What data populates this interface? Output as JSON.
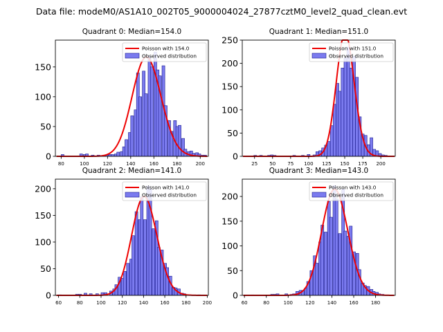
{
  "figure": {
    "suptitle": "Data file: modeM0/AS1A10_002T05_9000004024_27877cztM0_level2_quad_clean.evt"
  },
  "chart_data": [
    {
      "type": "histogram",
      "title": "Quadrant 0: Median=154.0",
      "median": 154.0,
      "xlim": [
        75,
        207
      ],
      "ylim": [
        0,
        195
      ],
      "xticks": [
        80,
        100,
        120,
        140,
        160,
        180,
        200
      ],
      "yticks": [
        0,
        50,
        100,
        150
      ],
      "bin_width": 2.45,
      "bins": [
        [
          80,
          3
        ],
        [
          96,
          4
        ],
        [
          99,
          3
        ],
        [
          101,
          4
        ],
        [
          106,
          2
        ],
        [
          111,
          2
        ],
        [
          116,
          2
        ],
        [
          119,
          2
        ],
        [
          121,
          3
        ],
        [
          123,
          3
        ],
        [
          126,
          4
        ],
        [
          128,
          7
        ],
        [
          131,
          8
        ],
        [
          133,
          16
        ],
        [
          135,
          28
        ],
        [
          138,
          40
        ],
        [
          140,
          68
        ],
        [
          143,
          78
        ],
        [
          145,
          140
        ],
        [
          147,
          100
        ],
        [
          150,
          143
        ],
        [
          152,
          105
        ],
        [
          155,
          168
        ],
        [
          157,
          150
        ],
        [
          160,
          175
        ],
        [
          162,
          145
        ],
        [
          164,
          135
        ],
        [
          167,
          152
        ],
        [
          169,
          85
        ],
        [
          172,
          60
        ],
        [
          174,
          42
        ],
        [
          177,
          60
        ],
        [
          179,
          50
        ],
        [
          181,
          52
        ],
        [
          184,
          30
        ],
        [
          186,
          12
        ],
        [
          189,
          8
        ],
        [
          191,
          9
        ],
        [
          193,
          5
        ],
        [
          196,
          6
        ],
        [
          198,
          4
        ],
        [
          201,
          2
        ],
        [
          203,
          2
        ]
      ],
      "poisson_mean": 154.0,
      "legend": [
        "Poisson with 154.0",
        "Observed distribution"
      ]
    },
    {
      "type": "histogram",
      "title": "Quadrant 1: Median=151.0",
      "median": 151.0,
      "xlim": [
        8,
        220
      ],
      "ylim": [
        0,
        250
      ],
      "xticks": [
        25,
        50,
        75,
        100,
        125,
        150,
        175,
        200
      ],
      "yticks": [
        0,
        50,
        100,
        150,
        200,
        250
      ],
      "bin_width": 3.9,
      "bins": [
        [
          16,
          1
        ],
        [
          20,
          1
        ],
        [
          24,
          2
        ],
        [
          28,
          1
        ],
        [
          32,
          2
        ],
        [
          39,
          1
        ],
        [
          43,
          2
        ],
        [
          47,
          3
        ],
        [
          51,
          2
        ],
        [
          55,
          1
        ],
        [
          59,
          1
        ],
        [
          67,
          1
        ],
        [
          71,
          1
        ],
        [
          78,
          2
        ],
        [
          82,
          1
        ],
        [
          90,
          2
        ],
        [
          98,
          4
        ],
        [
          106,
          3
        ],
        [
          110,
          10
        ],
        [
          114,
          12
        ],
        [
          118,
          18
        ],
        [
          122,
          24
        ],
        [
          126,
          32
        ],
        [
          130,
          66
        ],
        [
          134,
          112
        ],
        [
          138,
          157
        ],
        [
          141,
          140
        ],
        [
          145,
          190
        ],
        [
          149,
          212
        ],
        [
          153,
          235
        ],
        [
          157,
          190
        ],
        [
          161,
          215
        ],
        [
          165,
          170
        ],
        [
          169,
          85
        ],
        [
          173,
          48
        ],
        [
          177,
          45
        ],
        [
          181,
          25
        ],
        [
          185,
          40
        ],
        [
          189,
          15
        ],
        [
          193,
          12
        ],
        [
          197,
          6
        ],
        [
          201,
          3
        ],
        [
          205,
          2
        ],
        [
          209,
          1
        ]
      ],
      "poisson_mean": 151.0,
      "legend": [
        "Poisson with 151.0",
        "Observed distribution"
      ]
    },
    {
      "type": "histogram",
      "title": "Quadrant 2: Median=141.0",
      "median": 141.0,
      "xlim": [
        57,
        201
      ],
      "ylim": [
        0,
        218
      ],
      "xticks": [
        60,
        80,
        100,
        120,
        140,
        160,
        180,
        200
      ],
      "yticks": [
        0,
        50,
        100,
        150,
        200
      ],
      "bin_width": 2.65,
      "bins": [
        [
          60,
          1
        ],
        [
          76,
          2
        ],
        [
          79,
          2
        ],
        [
          84,
          4
        ],
        [
          89,
          3
        ],
        [
          95,
          3
        ],
        [
          100,
          5
        ],
        [
          103,
          5
        ],
        [
          108,
          8
        ],
        [
          111,
          12
        ],
        [
          113,
          20
        ],
        [
          116,
          34
        ],
        [
          119,
          32
        ],
        [
          121,
          45
        ],
        [
          124,
          60
        ],
        [
          127,
          68
        ],
        [
          129,
          112
        ],
        [
          132,
          157
        ],
        [
          135,
          142
        ],
        [
          137,
          185
        ],
        [
          140,
          142
        ],
        [
          143,
          205
        ],
        [
          145,
          200
        ],
        [
          148,
          125
        ],
        [
          151,
          140
        ],
        [
          153,
          90
        ],
        [
          156,
          85
        ],
        [
          159,
          60
        ],
        [
          161,
          52
        ],
        [
          164,
          36
        ],
        [
          167,
          15
        ],
        [
          169,
          14
        ],
        [
          172,
          12
        ],
        [
          175,
          4
        ],
        [
          177,
          3
        ],
        [
          180,
          1
        ],
        [
          191,
          1
        ]
      ],
      "poisson_mean": 141.0,
      "legend": [
        "Poisson with 141.0",
        "Observed distribution"
      ]
    },
    {
      "type": "histogram",
      "title": "Quadrant 3: Median=143.0",
      "median": 143.0,
      "xlim": [
        58,
        198
      ],
      "ylim": [
        0,
        235
      ],
      "xticks": [
        60,
        80,
        100,
        120,
        140,
        160,
        180
      ],
      "yticks": [
        0,
        50,
        100,
        150,
        200
      ],
      "bin_width": 2.6,
      "bins": [
        [
          66,
          1
        ],
        [
          82,
          1
        ],
        [
          84,
          2
        ],
        [
          87,
          2
        ],
        [
          89,
          3
        ],
        [
          97,
          3
        ],
        [
          102,
          2
        ],
        [
          104,
          3
        ],
        [
          107,
          8
        ],
        [
          110,
          10
        ],
        [
          112,
          10
        ],
        [
          115,
          15
        ],
        [
          117,
          28
        ],
        [
          120,
          50
        ],
        [
          123,
          80
        ],
        [
          125,
          65
        ],
        [
          128,
          108
        ],
        [
          130,
          142
        ],
        [
          133,
          128
        ],
        [
          136,
          190
        ],
        [
          138,
          158
        ],
        [
          141,
          222
        ],
        [
          143,
          195
        ],
        [
          146,
          125
        ],
        [
          149,
          215
        ],
        [
          151,
          130
        ],
        [
          154,
          120
        ],
        [
          156,
          140
        ],
        [
          159,
          88
        ],
        [
          162,
          85
        ],
        [
          164,
          52
        ],
        [
          167,
          25
        ],
        [
          169,
          20
        ],
        [
          172,
          18
        ],
        [
          175,
          12
        ],
        [
          177,
          8
        ],
        [
          180,
          6
        ],
        [
          182,
          3
        ],
        [
          185,
          2
        ],
        [
          188,
          1
        ]
      ],
      "poisson_mean": 143.0,
      "legend": [
        "Poisson with 143.0",
        "Observed distribution"
      ]
    }
  ]
}
